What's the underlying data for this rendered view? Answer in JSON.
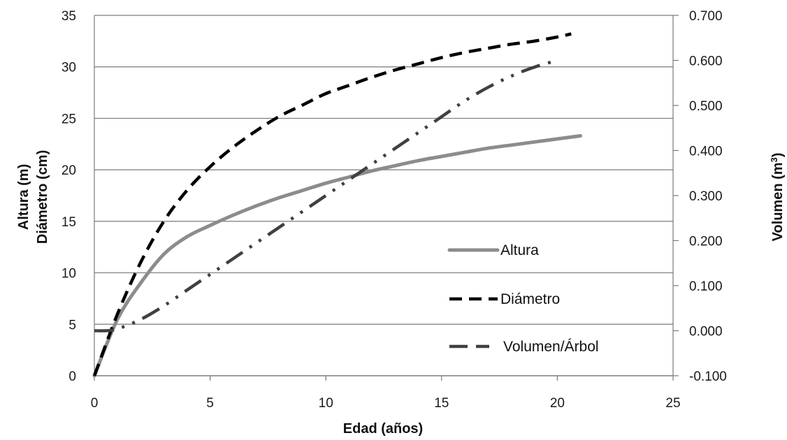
{
  "chart_data": {
    "type": "line",
    "title": "",
    "xlabel": "Edad (años)",
    "ylabel_left": [
      "Altura (m)",
      "Diámetro (cm)"
    ],
    "ylabel_right_base": "Volumen (m",
    "ylabel_right_sup": "3",
    "ylabel_right_end": ")",
    "xlim": [
      0,
      25
    ],
    "ylim_left": [
      0,
      35
    ],
    "ylim_right": [
      -0.1,
      0.7
    ],
    "x_ticks": [
      "0",
      "5",
      "10",
      "15",
      "20",
      "25"
    ],
    "y_left_ticks": [
      "0",
      "5",
      "10",
      "15",
      "20",
      "25",
      "30",
      "35"
    ],
    "y_right_ticks": [
      "-0.100",
      "0.000",
      "0.100",
      "0.200",
      "0.300",
      "0.400",
      "0.500",
      "0.600",
      "0.700"
    ],
    "grid": "horizontal",
    "legend_position": "right-center",
    "series": [
      {
        "name": "Altura",
        "axis": "left",
        "color": "#8c8c8c",
        "style": "solid",
        "points": [
          [
            0,
            0
          ],
          [
            1,
            5.5
          ],
          [
            2,
            9
          ],
          [
            3,
            11.8
          ],
          [
            4,
            13.5
          ],
          [
            5,
            14.6
          ],
          [
            6,
            15.6
          ],
          [
            7,
            16.5
          ],
          [
            8,
            17.3
          ],
          [
            9,
            18
          ],
          [
            10,
            18.7
          ],
          [
            11,
            19.3
          ],
          [
            12,
            19.9
          ],
          [
            13,
            20.4
          ],
          [
            14,
            20.9
          ],
          [
            15,
            21.3
          ],
          [
            16,
            21.7
          ],
          [
            17,
            22.1
          ],
          [
            18,
            22.4
          ],
          [
            19,
            22.7
          ],
          [
            20,
            23
          ],
          [
            21,
            23.3
          ]
        ]
      },
      {
        "name": "Diámetro",
        "axis": "left",
        "color": "#000000",
        "style": "dashed",
        "points": [
          [
            0,
            0
          ],
          [
            1,
            6
          ],
          [
            2,
            11
          ],
          [
            3,
            15
          ],
          [
            4,
            18
          ],
          [
            5,
            20.3
          ],
          [
            6,
            22.2
          ],
          [
            7,
            23.8
          ],
          [
            8,
            25.2
          ],
          [
            9,
            26.3
          ],
          [
            10,
            27.4
          ],
          [
            11,
            28.2
          ],
          [
            12,
            29
          ],
          [
            13,
            29.7
          ],
          [
            14,
            30.3
          ],
          [
            15,
            30.9
          ],
          [
            16,
            31.4
          ],
          [
            17,
            31.8
          ],
          [
            18,
            32.2
          ],
          [
            19,
            32.5
          ],
          [
            20,
            32.9
          ],
          [
            20.6,
            33.2
          ]
        ]
      },
      {
        "name": "Volumen/Árbol",
        "axis": "right",
        "color": "#404040",
        "style": "dash-dot-dot",
        "points": [
          [
            0,
            0.0
          ],
          [
            0.5,
            0.0
          ],
          [
            1,
            0.004
          ],
          [
            2,
            0.025
          ],
          [
            3,
            0.055
          ],
          [
            4,
            0.09
          ],
          [
            5,
            0.125
          ],
          [
            6,
            0.16
          ],
          [
            7,
            0.195
          ],
          [
            8,
            0.23
          ],
          [
            9,
            0.265
          ],
          [
            10,
            0.3
          ],
          [
            11,
            0.335
          ],
          [
            12,
            0.37
          ],
          [
            13,
            0.405
          ],
          [
            14,
            0.44
          ],
          [
            15,
            0.475
          ],
          [
            16,
            0.51
          ],
          [
            17,
            0.54
          ],
          [
            18,
            0.565
          ],
          [
            19,
            0.585
          ],
          [
            20,
            0.6
          ]
        ]
      }
    ]
  }
}
